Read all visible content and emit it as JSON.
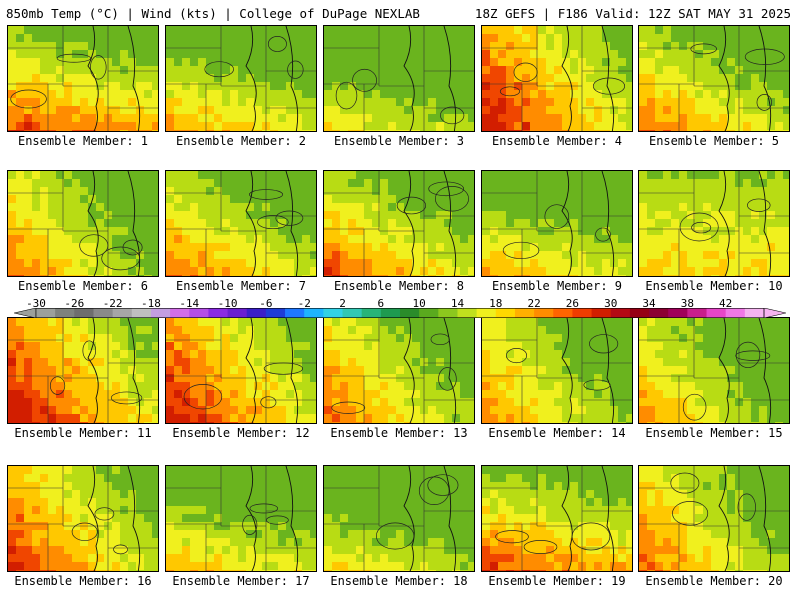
{
  "header": {
    "left": "850mb Temp (°C) | Wind (kts) | College of DuPage NEXLAB",
    "right": "18Z GEFS | F186 Valid: 12Z SAT MAY 31 2025"
  },
  "members": [
    {
      "label": "Ensemble Member: 1",
      "warmth": 0.62,
      "green_region": "north"
    },
    {
      "label": "Ensemble Member: 2",
      "warmth": 0.45,
      "green_region": "north"
    },
    {
      "label": "Ensemble Member: 3",
      "warmth": 0.3,
      "green_region": "north"
    },
    {
      "label": "Ensemble Member: 4",
      "warmth": 0.72,
      "green_region": "east"
    },
    {
      "label": "Ensemble Member: 5",
      "warmth": 0.55,
      "green_region": "north-east"
    },
    {
      "label": "Ensemble Member: 6",
      "warmth": 0.5,
      "green_region": "east"
    },
    {
      "label": "Ensemble Member: 7",
      "warmth": 0.55,
      "green_region": "north-east"
    },
    {
      "label": "Ensemble Member: 8",
      "warmth": 0.58,
      "green_region": "north-east"
    },
    {
      "label": "Ensemble Member: 9",
      "warmth": 0.42,
      "green_region": "north"
    },
    {
      "label": "Ensemble Member: 10",
      "warmth": 0.55,
      "green_region": "west"
    },
    {
      "label": "Ensemble Member: 11",
      "warmth": 0.75,
      "green_region": "east"
    },
    {
      "label": "Ensemble Member: 12",
      "warmth": 0.72,
      "green_region": "east"
    },
    {
      "label": "Ensemble Member: 13",
      "warmth": 0.55,
      "green_region": "east"
    },
    {
      "label": "Ensemble Member: 14",
      "warmth": 0.5,
      "green_region": "east"
    },
    {
      "label": "Ensemble Member: 15",
      "warmth": 0.45,
      "green_region": "east"
    },
    {
      "label": "Ensemble Member: 16",
      "warmth": 0.65,
      "green_region": "east"
    },
    {
      "label": "Ensemble Member: 17",
      "warmth": 0.4,
      "green_region": "north"
    },
    {
      "label": "Ensemble Member: 18",
      "warmth": 0.3,
      "green_region": "north"
    },
    {
      "label": "Ensemble Member: 19",
      "warmth": 0.62,
      "green_region": "north"
    },
    {
      "label": "Ensemble Member: 20",
      "warmth": 0.55,
      "green_region": "east"
    }
  ],
  "colorbar": {
    "ticks": [
      "-30",
      "-26",
      "-22",
      "-18",
      "-14",
      "-10",
      "-6",
      "-2",
      "2",
      "6",
      "10",
      "14",
      "18",
      "22",
      "26",
      "30",
      "34",
      "38",
      "42"
    ],
    "colors": [
      "#9ca09c",
      "#7e827e",
      "#6e6e6e",
      "#8a8a8a",
      "#a6a6a6",
      "#bfbfbf",
      "#c39ee0",
      "#d26ee8",
      "#b44ee6",
      "#8a2be2",
      "#6a1fd0",
      "#3a1fc8",
      "#1e3cd6",
      "#1e78ff",
      "#1eb4ff",
      "#32d2e6",
      "#32c8b4",
      "#28b478",
      "#1e9a50",
      "#2a8c2a",
      "#5aaa1e",
      "#8cc81e",
      "#c0e01e",
      "#f0f01e",
      "#ffd800",
      "#ffb000",
      "#ff8c00",
      "#ff6400",
      "#f03c00",
      "#d21e00",
      "#b40a14",
      "#960014",
      "#8c0032",
      "#a0005a",
      "#c81e8c",
      "#e646c8",
      "#f078e6",
      "#f5b4f0"
    ]
  }
}
